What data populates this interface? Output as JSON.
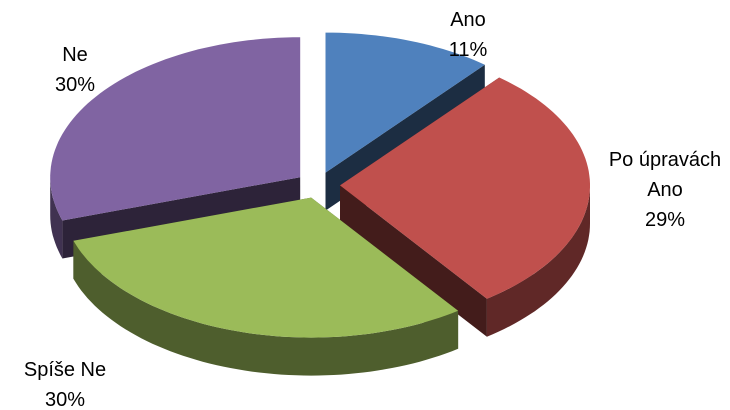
{
  "chart_data": {
    "type": "pie",
    "categories": [
      "Ano",
      "Po úpravách Ano",
      "Spíše Ne",
      "Ne"
    ],
    "values": [
      11,
      29,
      30,
      30
    ],
    "value_labels": [
      "11%",
      "29%",
      "30%",
      "30%"
    ],
    "colors": [
      "#4f81bd",
      "#c0504d",
      "#9bbb59",
      "#8064a2"
    ]
  }
}
